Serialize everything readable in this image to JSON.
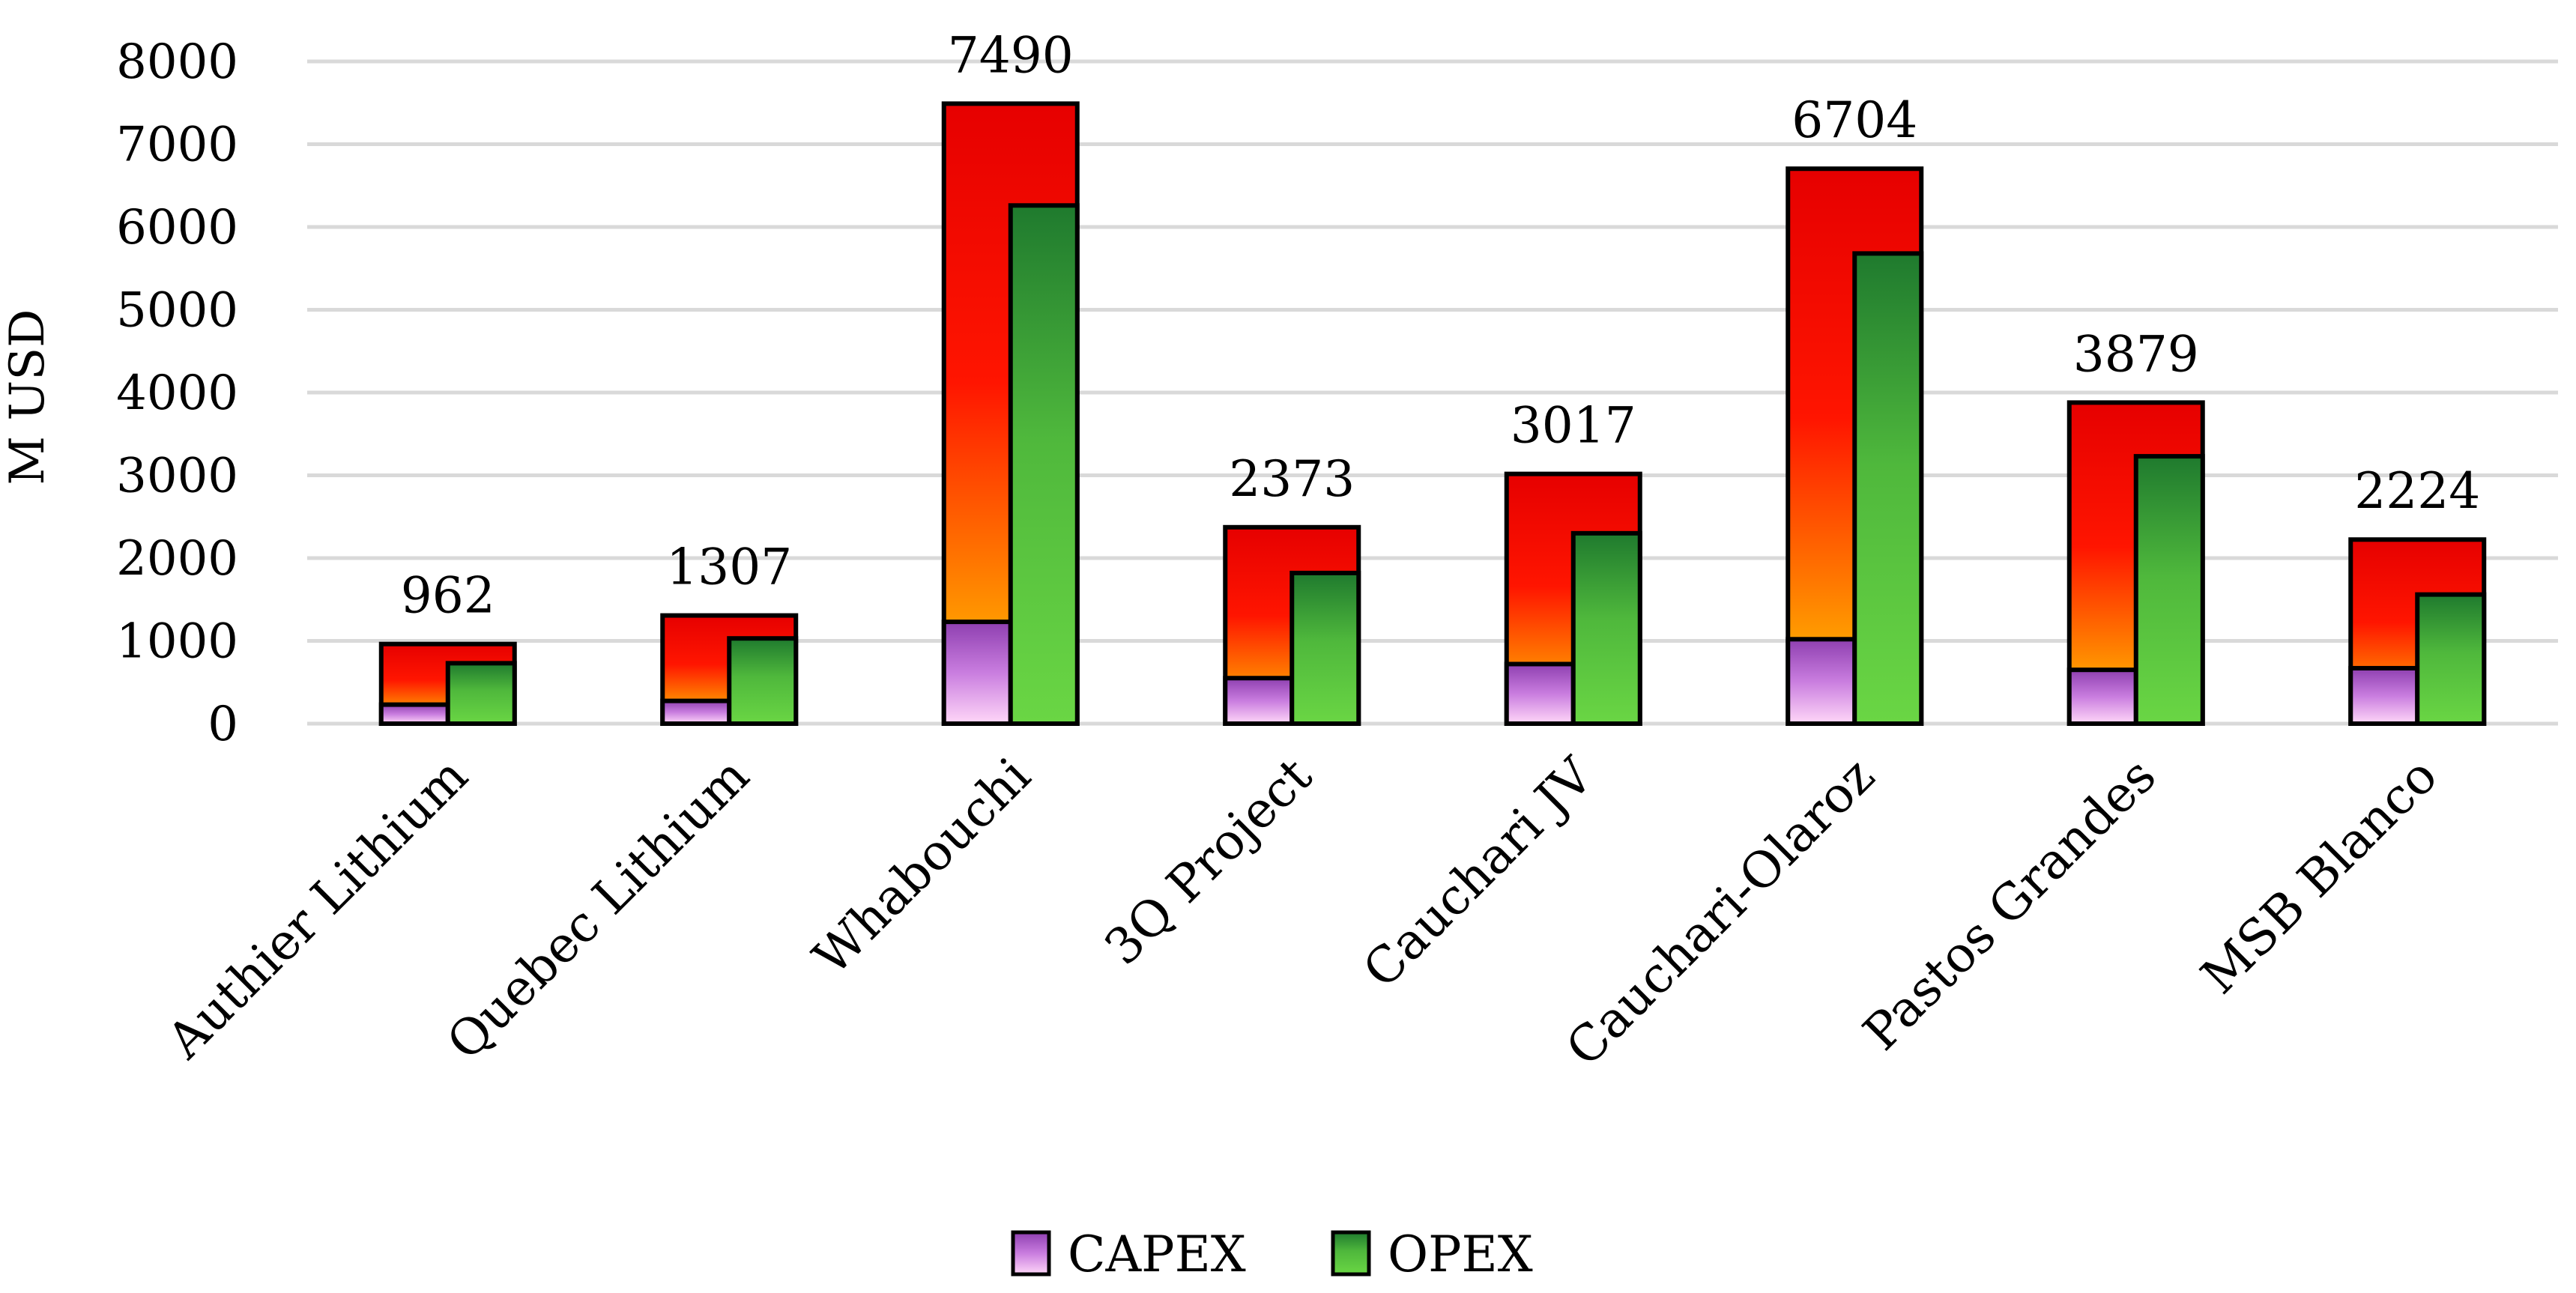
{
  "chart_data": {
    "type": "bar",
    "title": "",
    "xlabel": "",
    "ylabel": "M USD",
    "ylim": [
      0,
      8000
    ],
    "yticks": [
      0,
      1000,
      2000,
      3000,
      4000,
      5000,
      6000,
      7000,
      8000
    ],
    "grid": true,
    "legend_position": "bottom",
    "categories": [
      "Authier Lithium",
      "Quebec Lithium",
      "Whabouchi",
      "3Q Project",
      "Cauchari JV",
      "Cauchari-Olaroz",
      "Pastos Grandes",
      "MSB Blanco"
    ],
    "totals": [
      962,
      1307,
      7490,
      2373,
      3017,
      6704,
      3879,
      2224
    ],
    "series": [
      {
        "name": "CAPEX",
        "values": [
          230,
          275,
          1230,
          550,
          720,
          1020,
          650,
          670
        ],
        "color": "#c77dd9"
      },
      {
        "name": "OPEX",
        "values": [
          730,
          1030,
          6260,
          1820,
          2300,
          5680,
          3230,
          1560
        ],
        "color": "#5fd03c"
      }
    ],
    "colors": {
      "total_top": "#e80000",
      "total_mid": "#ff1a00",
      "total_bottom": "#ffd000"
    }
  }
}
